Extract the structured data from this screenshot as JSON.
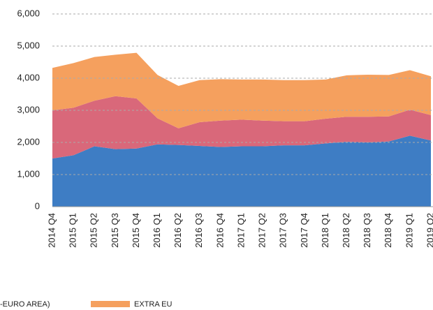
{
  "chart_data": {
    "type": "area",
    "stacked": true,
    "categories": [
      "2014 Q4",
      "2015 Q1",
      "2015 Q2",
      "2015 Q3",
      "2015 Q4",
      "2016 Q1",
      "2016 Q2",
      "2016 Q3",
      "2016 Q4",
      "2017 Q1",
      "2017 Q2",
      "2017 Q3",
      "2017 Q4",
      "2018 Q1",
      "2018 Q2",
      "2018 Q3",
      "2018 Q4",
      "2019 Q1",
      "2019 Q2"
    ],
    "series": [
      {
        "color": "#3e7dc4",
        "values": [
          1500,
          1600,
          1880,
          1790,
          1810,
          1940,
          1920,
          1890,
          1860,
          1880,
          1880,
          1910,
          1910,
          1970,
          2020,
          2000,
          2030,
          2210,
          2060
        ]
      },
      {
        "name": "-EURO AREA)",
        "color": "#d9687a",
        "values": [
          1500,
          1480,
          1420,
          1650,
          1560,
          810,
          520,
          740,
          820,
          830,
          800,
          750,
          750,
          770,
          780,
          800,
          780,
          810,
          790
        ]
      },
      {
        "name": "EXTRA EU",
        "color": "#f5a05e",
        "values": [
          1320,
          1390,
          1360,
          1290,
          1420,
          1350,
          1320,
          1310,
          1290,
          1250,
          1280,
          1280,
          1280,
          1220,
          1290,
          1310,
          1290,
          1230,
          1210
        ]
      }
    ],
    "ylim": [
      0,
      6000
    ],
    "yticks": [
      0,
      {
        "value": 1000,
        "label": "1,000"
      },
      {
        "value": 2000,
        "label": "2,000"
      },
      {
        "value": 3000,
        "label": "3,000"
      },
      {
        "value": 4000,
        "label": "4,000"
      },
      {
        "value": 5000,
        "label": "5,000"
      },
      {
        "value": 6000,
        "label": "6,000"
      }
    ],
    "grid": true
  }
}
